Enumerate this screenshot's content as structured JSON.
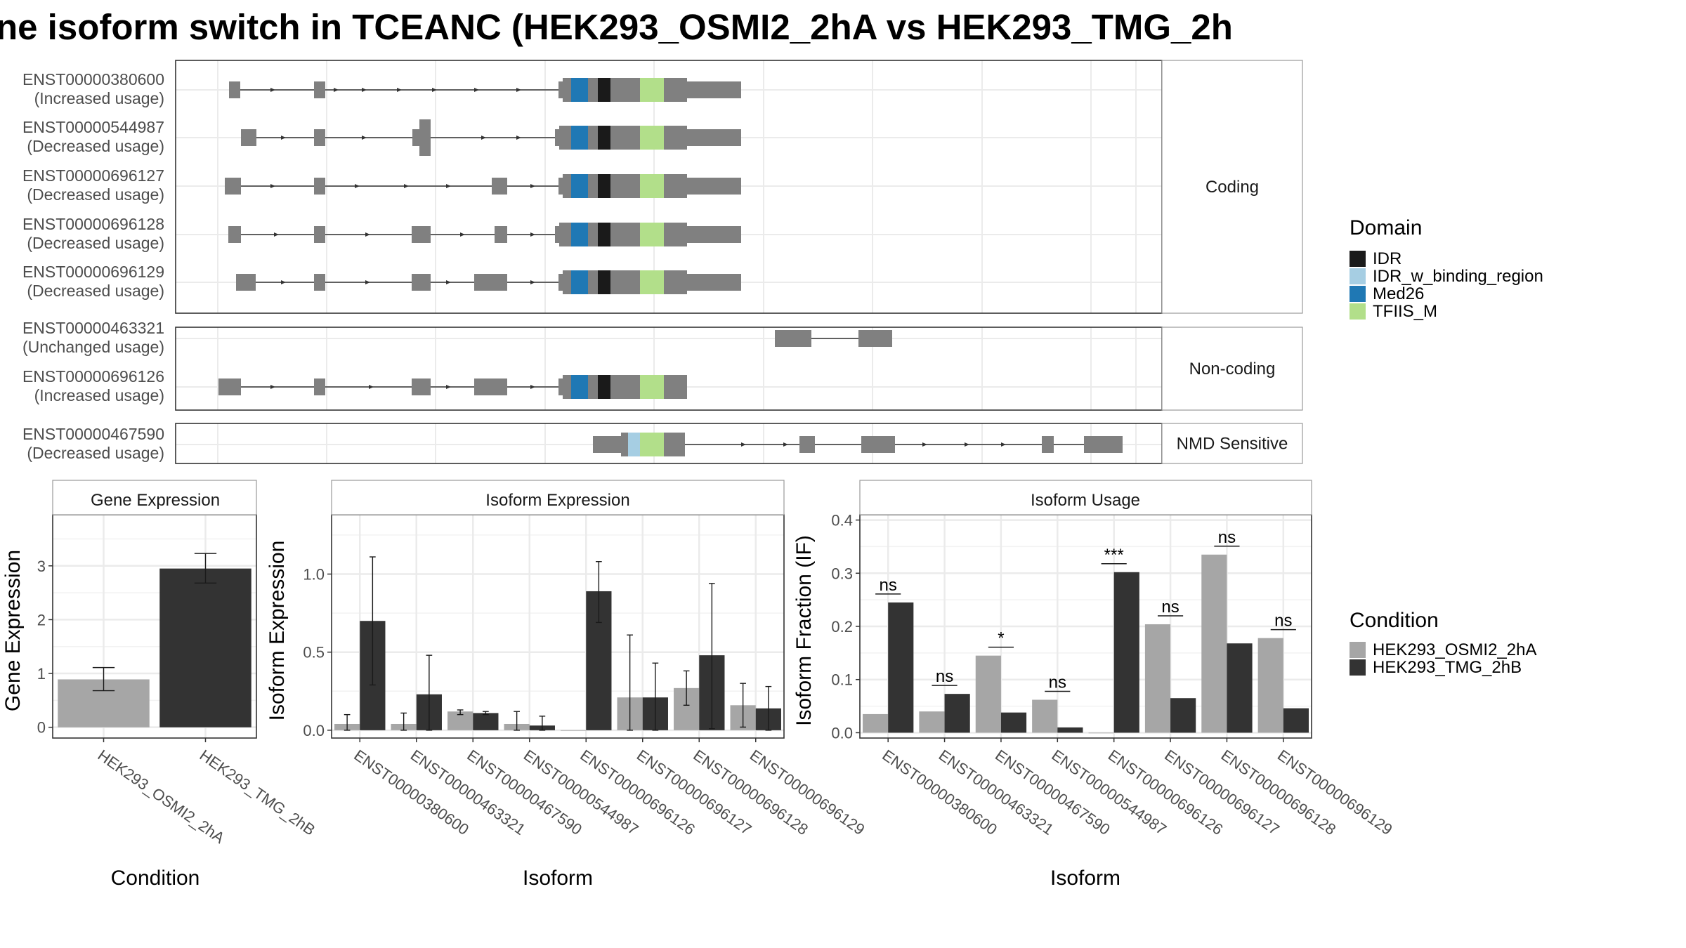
{
  "title": "ne isoform switch in TCEANC (HEK293_OSMI2_2hA vs HEK293_TMG_2h",
  "structure": {
    "groups": [
      {
        "label": "Coding",
        "transcripts": [
          {
            "id": "ENST00000380600",
            "usage": "(Increased usage)"
          },
          {
            "id": "ENST00000544987",
            "usage": "(Decreased usage)"
          },
          {
            "id": "ENST00000696127",
            "usage": "(Decreased usage)"
          },
          {
            "id": "ENST00000696128",
            "usage": "(Decreased usage)"
          },
          {
            "id": "ENST00000696129",
            "usage": "(Decreased usage)"
          }
        ]
      },
      {
        "label": "Non-coding",
        "transcripts": [
          {
            "id": "ENST00000463321",
            "usage": "(Unchanged usage)"
          },
          {
            "id": "ENST00000696126",
            "usage": "(Increased usage)"
          }
        ]
      },
      {
        "label": "NMD Sensitive",
        "transcripts": [
          {
            "id": "ENST00000467590",
            "usage": "(Decreased usage)"
          }
        ]
      }
    ]
  },
  "legend_domain": {
    "title": "Domain",
    "items": [
      {
        "label": "IDR",
        "color": "#1a1a1a"
      },
      {
        "label": "IDR_w_binding_region",
        "color": "#a6cee3"
      },
      {
        "label": "Med26",
        "color": "#1f78b4"
      },
      {
        "label": "TFIIS_M",
        "color": "#b2df8a"
      }
    ]
  },
  "legend_condition": {
    "title": "Condition",
    "items": [
      {
        "label": "HEK293_OSMI2_2hA",
        "color": "#a6a6a6"
      },
      {
        "label": "HEK293_TMG_2hB",
        "color": "#333333"
      }
    ]
  },
  "chart_data": [
    {
      "type": "bar",
      "title": "Gene Expression",
      "xlabel": "Condition",
      "ylabel": "Gene Expression",
      "categories": [
        "HEK293_OSMI2_2hA",
        "HEK293_TMG_2hB"
      ],
      "values": [
        0.89,
        2.95
      ],
      "error_low": [
        0.68,
        2.68
      ],
      "error_high": [
        1.11,
        3.23
      ],
      "yticks": [
        "0",
        "1",
        "2",
        "3"
      ],
      "ylim": [
        -0.2,
        3.95
      ]
    },
    {
      "type": "bar",
      "title": "Isoform Expression",
      "xlabel": "Isoform",
      "ylabel": "Isoform Expression",
      "categories": [
        "ENST00000380600",
        "ENST00000463321",
        "ENST00000467590",
        "ENST00000544987",
        "ENST00000696126",
        "ENST00000696127",
        "ENST00000696128",
        "ENST00000696129"
      ],
      "series": [
        {
          "name": "HEK293_OSMI2_2hA",
          "values": [
            0.04,
            0.04,
            0.12,
            0.04,
            0.0,
            0.21,
            0.27,
            0.16
          ],
          "error_low": [
            0.0,
            0.0,
            0.1,
            0.0,
            0.0,
            0.0,
            0.16,
            0.02
          ],
          "error_high": [
            0.1,
            0.11,
            0.13,
            0.12,
            0.0,
            0.61,
            0.38,
            0.3
          ]
        },
        {
          "name": "HEK293_TMG_2hB",
          "values": [
            0.7,
            0.23,
            0.11,
            0.03,
            0.89,
            0.21,
            0.48,
            0.14
          ],
          "error_low": [
            0.29,
            0.0,
            0.1,
            0.0,
            0.69,
            0.0,
            0.01,
            0.0
          ],
          "error_high": [
            1.11,
            0.48,
            0.12,
            0.09,
            1.08,
            0.43,
            0.94,
            0.28
          ]
        }
      ],
      "yticks": [
        "0.0",
        "0.5",
        "1.0"
      ],
      "ylim": [
        -0.05,
        1.38
      ]
    },
    {
      "type": "bar",
      "title": "Isoform Usage",
      "xlabel": "Isoform",
      "ylabel": "Isoform Fraction (IF)",
      "categories": [
        "ENST00000380600",
        "ENST00000463321",
        "ENST00000467590",
        "ENST00000544987",
        "ENST00000696126",
        "ENST00000696127",
        "ENST00000696128",
        "ENST00000696129"
      ],
      "series": [
        {
          "name": "HEK293_OSMI2_2hA",
          "values": [
            0.035,
            0.04,
            0.145,
            0.062,
            0.0,
            0.204,
            0.335,
            0.178
          ]
        },
        {
          "name": "HEK293_TMG_2hB",
          "values": [
            0.245,
            0.073,
            0.038,
            0.01,
            0.302,
            0.065,
            0.168,
            0.046
          ]
        }
      ],
      "significance": [
        "ns",
        "ns",
        "*",
        "ns",
        "***",
        "ns",
        "ns",
        "ns"
      ],
      "yticks": [
        "0.0",
        "0.1",
        "0.2",
        "0.3",
        "0.4"
      ],
      "ylim": [
        -0.01,
        0.41
      ]
    }
  ]
}
